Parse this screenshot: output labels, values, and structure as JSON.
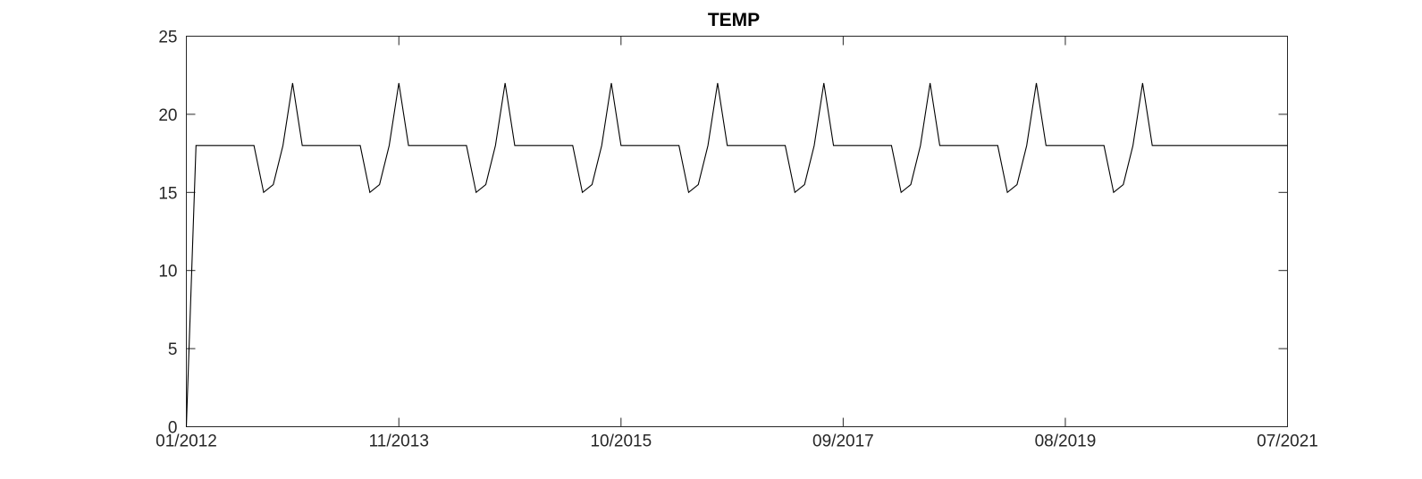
{
  "chart_data": {
    "type": "line",
    "title": "TEMP",
    "xlabel": "",
    "ylabel": "",
    "xlim": [
      "2012-01",
      "2021-07"
    ],
    "ylim": [
      0,
      25
    ],
    "y_ticks": [
      0,
      5,
      10,
      15,
      20,
      25
    ],
    "x_ticks": [
      {
        "date": "2012-01",
        "label": "01/2012"
      },
      {
        "date": "2013-11",
        "label": "11/2013"
      },
      {
        "date": "2015-10",
        "label": "10/2015"
      },
      {
        "date": "2017-09",
        "label": "09/2017"
      },
      {
        "date": "2019-08",
        "label": "08/2019"
      },
      {
        "date": "2021-07",
        "label": "07/2021"
      }
    ],
    "grid": false,
    "color": "#000000",
    "series": [
      {
        "name": "TEMP",
        "x": [
          "2012-01",
          "2012-02",
          "2012-03",
          "2012-04",
          "2012-05",
          "2012-06",
          "2012-07",
          "2012-08",
          "2012-09",
          "2012-10",
          "2012-11",
          "2012-12",
          "2013-01",
          "2013-02",
          "2013-03",
          "2013-04",
          "2013-05",
          "2013-06",
          "2013-07",
          "2013-08",
          "2013-09",
          "2013-10",
          "2013-11",
          "2013-12",
          "2014-01",
          "2014-02",
          "2014-03",
          "2014-04",
          "2014-05",
          "2014-06",
          "2014-07",
          "2014-08",
          "2014-09",
          "2014-10",
          "2014-11",
          "2014-12",
          "2015-01",
          "2015-02",
          "2015-03",
          "2015-04",
          "2015-05",
          "2015-06",
          "2015-07",
          "2015-08",
          "2015-09",
          "2015-10",
          "2015-11",
          "2015-12",
          "2016-01",
          "2016-02",
          "2016-03",
          "2016-04",
          "2016-05",
          "2016-06",
          "2016-07",
          "2016-08",
          "2016-09",
          "2016-10",
          "2016-11",
          "2016-12",
          "2017-01",
          "2017-02",
          "2017-03",
          "2017-04",
          "2017-05",
          "2017-06",
          "2017-07",
          "2017-08",
          "2017-09",
          "2017-10",
          "2017-11",
          "2017-12",
          "2018-01",
          "2018-02",
          "2018-03",
          "2018-04",
          "2018-05",
          "2018-06",
          "2018-07",
          "2018-08",
          "2018-09",
          "2018-10",
          "2018-11",
          "2018-12",
          "2019-01",
          "2019-02",
          "2019-03",
          "2019-04",
          "2019-05",
          "2019-06",
          "2019-07",
          "2019-08",
          "2019-09",
          "2019-10",
          "2019-11",
          "2019-12",
          "2020-01",
          "2020-02",
          "2020-03",
          "2020-04",
          "2020-05",
          "2020-06",
          "2020-07",
          "2020-08",
          "2020-09",
          "2020-10",
          "2020-11",
          "2020-12",
          "2021-01",
          "2021-02",
          "2021-03",
          "2021-04",
          "2021-05",
          "2021-06",
          "2021-07"
        ],
        "values": [
          0,
          18,
          18,
          18,
          18,
          18,
          18,
          18,
          15,
          15.5,
          18,
          22,
          18,
          18,
          18,
          18,
          18,
          18,
          18,
          15,
          15.5,
          18,
          22,
          18,
          18,
          18,
          18,
          18,
          18,
          18,
          15,
          15.5,
          18,
          22,
          18,
          18,
          18,
          18,
          18,
          18,
          18,
          15,
          15.5,
          18,
          22,
          18,
          18,
          18,
          18,
          18,
          18,
          18,
          15,
          15.5,
          18,
          22,
          18,
          18,
          18,
          18,
          18,
          18,
          18,
          15,
          15.5,
          18,
          22,
          18,
          18,
          18,
          18,
          18,
          18,
          18,
          15,
          15.5,
          18,
          22,
          18,
          18,
          18,
          18,
          18,
          18,
          18,
          15,
          15.5,
          18,
          22,
          18,
          18,
          18,
          18,
          18,
          18,
          18,
          15,
          15.5,
          18,
          22,
          18,
          18,
          18,
          18,
          18,
          18,
          18,
          18,
          18,
          18,
          18,
          18,
          18,
          18,
          18
        ]
      }
    ]
  }
}
